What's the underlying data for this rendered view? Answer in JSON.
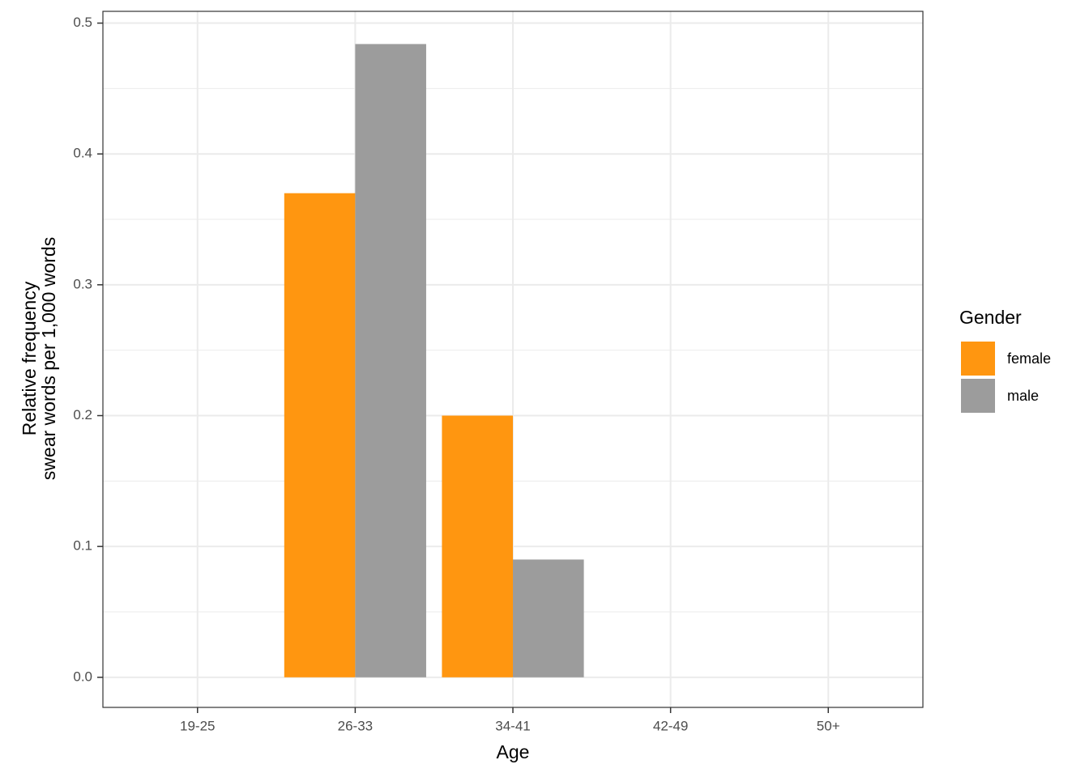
{
  "chart_data": {
    "type": "bar",
    "categories": [
      "19-25",
      "26-33",
      "34-41",
      "42-49",
      "50+"
    ],
    "series": [
      {
        "name": "female",
        "color": "#ff9610",
        "values": [
          null,
          0.37,
          0.2,
          null,
          null
        ]
      },
      {
        "name": "male",
        "color": "#9c9c9c",
        "values": [
          null,
          0.484,
          0.09,
          null,
          null
        ]
      }
    ],
    "x_label": "Age",
    "y_label": [
      "Relative frequency",
      "swear words per 1,000 words"
    ],
    "legend_title": "Gender",
    "legend": "right",
    "ylim": [
      -0.023,
      0.509
    ],
    "yticks": [
      {
        "value": 0,
        "label": "0.0"
      },
      0.1,
      0.2,
      0.3,
      0.4,
      0.5
    ],
    "y_minor_ticks": [
      0.05,
      0.15,
      0.25,
      0.35,
      0.45
    ],
    "grid": true
  }
}
